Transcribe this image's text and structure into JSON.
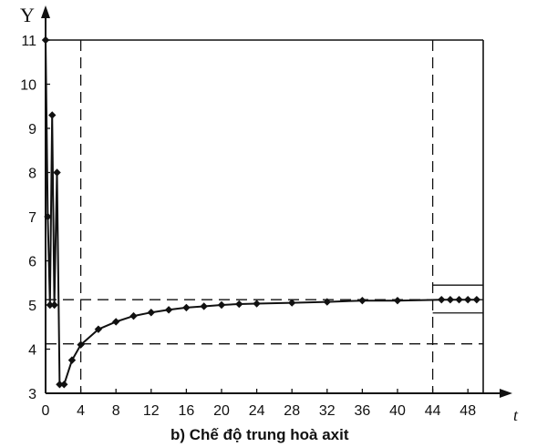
{
  "chart_data": {
    "type": "line",
    "caption": "b) Chế độ trung hoà axit",
    "ylabel": "Y",
    "xlabel": "t",
    "xlim": [
      0,
      49
    ],
    "ylim": [
      3,
      11
    ],
    "x_ticks": [
      0,
      4,
      8,
      12,
      16,
      20,
      24,
      28,
      32,
      36,
      40,
      44,
      48
    ],
    "y_ticks": [
      3,
      4,
      5,
      6,
      7,
      8,
      9,
      10,
      11
    ],
    "series": [
      {
        "values": [
          {
            "x": 0,
            "y": 11
          },
          {
            "x": 0.25,
            "y": 7
          },
          {
            "x": 0.5,
            "y": 5
          },
          {
            "x": 0.75,
            "y": 9.3
          },
          {
            "x": 1.0,
            "y": 5
          },
          {
            "x": 1.3,
            "y": 8
          },
          {
            "x": 1.6,
            "y": 3.2
          },
          {
            "x": 2.1,
            "y": 3.2
          },
          {
            "x": 3.0,
            "y": 3.75
          },
          {
            "x": 4.0,
            "y": 4.1
          },
          {
            "x": 6.0,
            "y": 4.45
          },
          {
            "x": 8.0,
            "y": 4.62
          },
          {
            "x": 10.0,
            "y": 4.75
          },
          {
            "x": 12.0,
            "y": 4.83
          },
          {
            "x": 14.0,
            "y": 4.89
          },
          {
            "x": 16.0,
            "y": 4.94
          },
          {
            "x": 18.0,
            "y": 4.97
          },
          {
            "x": 20.0,
            "y": 5.0
          },
          {
            "x": 22.0,
            "y": 5.02
          },
          {
            "x": 24.0,
            "y": 5.03
          },
          {
            "x": 28.0,
            "y": 5.05
          },
          {
            "x": 32.0,
            "y": 5.07
          },
          {
            "x": 36.0,
            "y": 5.1
          },
          {
            "x": 40.0,
            "y": 5.1
          },
          {
            "x": 45.0,
            "y": 5.12
          },
          {
            "x": 46.0,
            "y": 5.12
          },
          {
            "x": 47.0,
            "y": 5.12
          },
          {
            "x": 48.0,
            "y": 5.12
          },
          {
            "x": 49.0,
            "y": 5.12
          }
        ]
      }
    ],
    "reference_lines": {
      "horizontal_dashed": [
        5.12,
        4.12
      ],
      "vertical_dashed": [
        4,
        44
      ],
      "band_after_44": {
        "from_x": 44,
        "upper": 5.45,
        "lower": 4.82
      },
      "top_solid": 11
    },
    "grid": false,
    "legend": "none",
    "colors": {
      "line": "#111111",
      "background": "#ffffff"
    }
  }
}
